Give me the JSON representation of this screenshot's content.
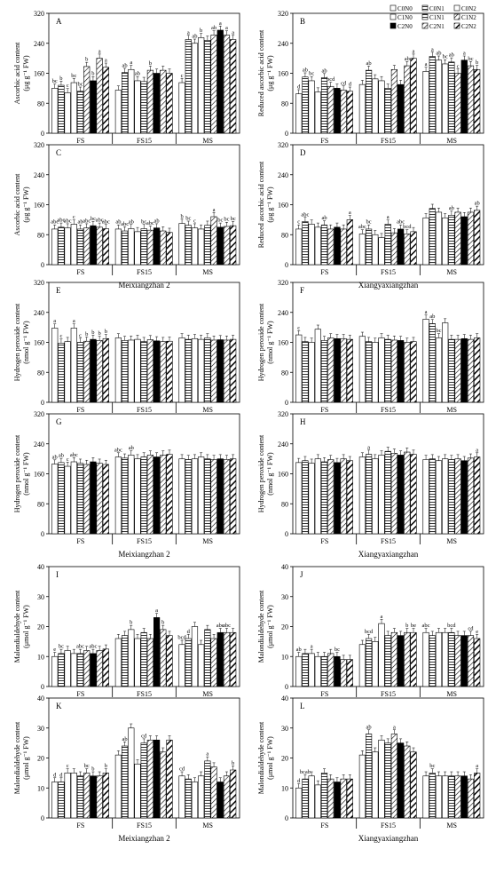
{
  "legend": {
    "items": [
      {
        "label": "C0N0",
        "pattern": "white"
      },
      {
        "label": "C0N1",
        "pattern": "hlines"
      },
      {
        "label": "C0N2",
        "pattern": "white"
      },
      {
        "label": "C1N0",
        "pattern": "white"
      },
      {
        "label": "C1N1",
        "pattern": "hlines"
      },
      {
        "label": "C1N2",
        "pattern": "diag"
      },
      {
        "label": "C2N0",
        "pattern": "black"
      },
      {
        "label": "C2N1",
        "pattern": "diag"
      },
      {
        "label": "C2N2",
        "pattern": "diagbold"
      }
    ]
  },
  "column_labels": [
    {
      "text": "Meixiangzhan 2",
      "row": 1,
      "col": 0
    },
    {
      "text": "Xiangyaxiangzhan",
      "row": 1,
      "col": 1
    },
    {
      "text": "Meixiangzhan 2",
      "row": 3,
      "col": 0
    },
    {
      "text": "Xiangyaxiangzhan",
      "row": 3,
      "col": 1
    },
    {
      "text": "Meixiangzhan 2",
      "row": 5,
      "col": 0
    },
    {
      "text": "Xiangyaxiangzhan",
      "row": 5,
      "col": 1
    }
  ],
  "chart_data": [
    {
      "panel": "A",
      "type": "bar",
      "ylabel": "Ascorbic acid content",
      "yunit": "(μg g⁻¹ FW)",
      "ylim": [
        0,
        320
      ],
      "yticks": [
        0,
        80,
        160,
        240,
        320
      ],
      "categories": [
        "FS",
        "FS15",
        "MS"
      ],
      "values": [
        [
          120,
          128,
          108,
          135,
          112,
          178,
          140,
          200,
          176
        ],
        [
          115,
          162,
          170,
          140,
          138,
          168,
          160,
          168,
          160
        ],
        [
          135,
          250,
          240,
          255,
          248,
          262,
          275,
          262,
          250
        ]
      ],
      "letters": [
        [
          "bc",
          "b",
          "c",
          "bc",
          "bc",
          "b",
          "b",
          "a",
          "a"
        ],
        [
          "",
          "ab",
          "a",
          "ab",
          "",
          "b",
          "",
          "",
          ""
        ],
        [
          "c",
          "a",
          "ab",
          "b",
          "",
          "ab",
          "a",
          "a",
          "a"
        ]
      ]
    },
    {
      "panel": "B",
      "type": "bar",
      "ylabel": "Reduced ascorbic acid content",
      "yunit": "(μg g⁻¹ FW)",
      "ylim": [
        0,
        320
      ],
      "yticks": [
        0,
        80,
        160,
        240,
        320
      ],
      "categories": [
        "FS",
        "FS15",
        "MS"
      ],
      "values": [
        [
          105,
          150,
          140,
          110,
          148,
          125,
          120,
          115,
          112
        ],
        [
          130,
          168,
          145,
          140,
          120,
          170,
          130,
          180,
          200
        ],
        [
          165,
          205,
          195,
          185,
          190,
          160,
          195,
          180,
          170
        ]
      ],
      "letters": [
        [
          "d",
          "ab",
          "bc",
          "",
          "ab",
          "bcd",
          "",
          "cd",
          "d"
        ],
        [
          "",
          "ab",
          "",
          "",
          "",
          "",
          "",
          "ab",
          "a"
        ],
        [
          "a",
          "a",
          "ab",
          "bc",
          "ab",
          "c",
          "a",
          "bc",
          "b"
        ]
      ]
    },
    {
      "panel": "C",
      "type": "bar",
      "ylabel": "Ascorbic acid content",
      "yunit": "(μg g⁻¹ FW)",
      "ylim": [
        0,
        320
      ],
      "yticks": [
        0,
        80,
        160,
        240,
        320
      ],
      "categories": [
        "FS",
        "FS15",
        "MS"
      ],
      "values": [
        [
          95,
          100,
          98,
          108,
          95,
          98,
          104,
          100,
          96
        ],
        [
          95,
          90,
          96,
          88,
          96,
          92,
          98,
          90,
          86
        ],
        [
          110,
          105,
          98,
          95,
          105,
          128,
          100,
          102,
          104
        ]
      ],
      "letters": [
        [
          "abc",
          "abc",
          "abc",
          "c",
          "ab",
          "abc",
          "bc",
          "abc",
          "abc"
        ],
        [
          "ab",
          "abc",
          "ab",
          "",
          "bc",
          "abc",
          "ab",
          "",
          ""
        ],
        [
          "b",
          "bc",
          "c",
          "",
          "",
          "a",
          "bc",
          "bc",
          "bc"
        ]
      ]
    },
    {
      "panel": "D",
      "type": "bar",
      "ylabel": "Reduced ascorbic acid content",
      "yunit": "(μg g⁻¹ FW)",
      "ylim": [
        0,
        320
      ],
      "yticks": [
        0,
        80,
        160,
        240,
        320
      ],
      "categories": [
        "FS",
        "FS15",
        "MS"
      ],
      "values": [
        [
          95,
          115,
          108,
          100,
          106,
          95,
          100,
          95,
          120
        ],
        [
          82,
          95,
          80,
          72,
          108,
          85,
          95,
          82,
          88
        ],
        [
          125,
          150,
          140,
          125,
          132,
          140,
          128,
          140,
          145
        ]
      ],
      "letters": [
        [
          "c",
          "abc",
          "",
          "",
          "ab",
          "",
          "",
          "",
          "a"
        ],
        [
          "abc",
          "bc",
          "",
          "",
          "a",
          "",
          "abc",
          "bcd",
          ""
        ],
        [
          "",
          "",
          "",
          "",
          "ab",
          "",
          "",
          "",
          "ab"
        ]
      ]
    },
    {
      "panel": "E",
      "type": "bar",
      "ylabel": "Hydrogen peroxide content",
      "yunit": "(nmol g⁻¹ FW)",
      "ylim": [
        0,
        320
      ],
      "yticks": [
        0,
        80,
        160,
        240,
        320
      ],
      "categories": [
        "FS",
        "FS15",
        "MS"
      ],
      "values": [
        [
          198,
          158,
          162,
          198,
          160,
          163,
          168,
          165,
          170
        ],
        [
          172,
          165,
          166,
          168,
          162,
          167,
          164,
          162,
          163
        ],
        [
          172,
          168,
          170,
          168,
          172,
          166,
          167,
          166,
          168
        ]
      ],
      "letters": [
        [
          "a",
          "c",
          "",
          "a",
          "c",
          "b",
          "b",
          "b",
          "b"
        ],
        [
          "",
          "",
          "",
          "",
          "",
          "",
          "",
          "",
          ""
        ],
        [
          "",
          "",
          "",
          "",
          "",
          "",
          "",
          "",
          ""
        ]
      ]
    },
    {
      "panel": "F",
      "type": "bar",
      "ylabel": "Hydrogen peroxide content",
      "yunit": "(nmol g⁻¹ FW)",
      "ylim": [
        0,
        320
      ],
      "yticks": [
        0,
        80,
        160,
        240,
        320
      ],
      "categories": [
        "FS",
        "FS15",
        "MS"
      ],
      "values": [
        [
          180,
          162,
          160,
          195,
          165,
          172,
          170,
          170,
          168
        ],
        [
          176,
          162,
          160,
          172,
          168,
          166,
          165,
          160,
          162
        ],
        [
          222,
          210,
          172,
          212,
          168,
          168,
          170,
          168,
          172
        ]
      ],
      "letters": [
        [
          "c",
          "",
          "",
          "",
          "",
          "",
          "",
          "",
          ""
        ],
        [
          "",
          "",
          "",
          "",
          "",
          "",
          "",
          "",
          ""
        ],
        [
          "a",
          "ab",
          "bc",
          "",
          "",
          "",
          "",
          "",
          ""
        ]
      ]
    },
    {
      "panel": "G",
      "type": "bar",
      "ylabel": "Hydrogen peroxide content",
      "yunit": "(nmol g⁻¹ FW)",
      "ylim": [
        0,
        320
      ],
      "yticks": [
        0,
        80,
        160,
        240,
        320
      ],
      "categories": [
        "FS",
        "FS15",
        "MS"
      ],
      "values": [
        [
          186,
          190,
          180,
          192,
          188,
          185,
          192,
          188,
          185
        ],
        [
          205,
          202,
          210,
          200,
          205,
          210,
          205,
          210,
          212
        ],
        [
          200,
          198,
          200,
          205,
          200,
          198,
          200,
          198,
          200
        ]
      ],
      "letters": [
        [
          "ab",
          "ab",
          "c",
          "abc",
          "",
          "",
          "",
          "",
          ""
        ],
        [
          "abc",
          "",
          "ab",
          "",
          "",
          "",
          "",
          "",
          ""
        ],
        [
          "",
          "",
          "",
          "",
          "",
          "",
          "",
          "",
          ""
        ]
      ]
    },
    {
      "panel": "H",
      "type": "bar",
      "ylabel": "Hydrogen peroxide content",
      "yunit": "(nmol g⁻¹ FW)",
      "ylim": [
        0,
        320
      ],
      "yticks": [
        0,
        80,
        160,
        240,
        320
      ],
      "categories": [
        "FS",
        "FS15",
        "MS"
      ],
      "values": [
        [
          190,
          195,
          188,
          200,
          192,
          198,
          190,
          200,
          195
        ],
        [
          205,
          212,
          200,
          210,
          220,
          215,
          210,
          218,
          212
        ],
        [
          198,
          200,
          195,
          200,
          198,
          200,
          195,
          202,
          205
        ]
      ],
      "letters": [
        [
          "",
          "",
          "",
          "",
          "",
          "",
          "",
          "",
          ""
        ],
        [
          "",
          "a",
          "",
          "",
          "",
          "",
          "",
          "",
          ""
        ],
        [
          "",
          "",
          "",
          "",
          "",
          "",
          "",
          "",
          "a"
        ]
      ]
    },
    {
      "panel": "I",
      "type": "bar",
      "ylabel": "Malondialdehyde content",
      "yunit": "(μmol g⁻¹ FW)",
      "ylim": [
        0,
        40
      ],
      "yticks": [
        0,
        10,
        20,
        30,
        40
      ],
      "categories": [
        "FS",
        "FS15",
        "MS"
      ],
      "values": [
        [
          10,
          11,
          12,
          11,
          11,
          12,
          11,
          12,
          12.5
        ],
        [
          16,
          17,
          19,
          16,
          18,
          16,
          23,
          19,
          17
        ],
        [
          14,
          16,
          20,
          14,
          19,
          16,
          18,
          18,
          18
        ]
      ],
      "letters": [
        [
          "e",
          "bc",
          "",
          "",
          "abc",
          "",
          "abc",
          "",
          ""
        ],
        [
          "",
          "",
          "b",
          "",
          "",
          "",
          "a",
          "b",
          ""
        ],
        [
          "bcd",
          "d",
          "",
          "",
          "",
          "",
          "abc",
          "abc",
          ""
        ]
      ]
    },
    {
      "panel": "J",
      "type": "bar",
      "ylabel": "Malondialdehyde content",
      "yunit": "(μmol g⁻¹ FW)",
      "ylim": [
        0,
        40
      ],
      "yticks": [
        0,
        10,
        20,
        30,
        40
      ],
      "categories": [
        "FS",
        "FS15",
        "MS"
      ],
      "values": [
        [
          10,
          11,
          11,
          10,
          10,
          11,
          10,
          9,
          9
        ],
        [
          14,
          16,
          15,
          21,
          17,
          18,
          17,
          18,
          18
        ],
        [
          18,
          17,
          18,
          18,
          18,
          17,
          17,
          17,
          16
        ]
      ],
      "letters": [
        [
          "ab",
          "",
          "a",
          "",
          "",
          "",
          "bc",
          "",
          ""
        ],
        [
          "",
          "bcd",
          "",
          "a",
          "",
          "",
          "",
          "b",
          "be"
        ],
        [
          "abc",
          "",
          "",
          "",
          "bcd",
          "",
          "",
          "cd",
          "e"
        ]
      ]
    },
    {
      "panel": "K",
      "type": "bar",
      "ylabel": "Malondialdehyde content",
      "yunit": "(μmol g⁻¹ FW)",
      "ylim": [
        0,
        40
      ],
      "yticks": [
        0,
        10,
        20,
        30,
        40
      ],
      "categories": [
        "FS",
        "FS15",
        "MS"
      ],
      "values": [
        [
          12,
          12,
          15,
          15,
          14,
          15,
          14,
          14,
          15
        ],
        [
          21,
          24,
          30,
          18,
          25,
          26,
          26,
          22,
          26
        ],
        [
          14,
          13,
          12,
          14,
          19,
          17,
          12,
          14,
          16
        ]
      ],
      "letters": [
        [
          "d",
          "d",
          "c",
          "",
          "",
          "bc",
          "b",
          "",
          "b"
        ],
        [
          "",
          "ab",
          "",
          "",
          "cd",
          "",
          "",
          "",
          ""
        ],
        [
          "cd",
          "",
          "",
          "",
          "a",
          "",
          "",
          "",
          "b"
        ]
      ]
    },
    {
      "panel": "L",
      "type": "bar",
      "ylabel": "Malondialdehyde content",
      "yunit": "(μmol g⁻¹ FW)",
      "ylim": [
        0,
        40
      ],
      "yticks": [
        0,
        10,
        20,
        30,
        40
      ],
      "categories": [
        "FS",
        "FS15",
        "MS"
      ],
      "values": [
        [
          10,
          13,
          14,
          11,
          15,
          13,
          12,
          13,
          13
        ],
        [
          21,
          28,
          22,
          26,
          25,
          28,
          25,
          24,
          22
        ],
        [
          14,
          15,
          14,
          14,
          14,
          14,
          14,
          13,
          15
        ]
      ],
      "letters": [
        [
          "d",
          "bcab",
          "",
          "",
          "",
          "",
          "",
          "",
          ""
        ],
        [
          "",
          "ab",
          "",
          "",
          "",
          "a",
          "",
          "",
          ""
        ],
        [
          "",
          "bc",
          "",
          "",
          "",
          "",
          "",
          "",
          "a"
        ]
      ]
    }
  ]
}
